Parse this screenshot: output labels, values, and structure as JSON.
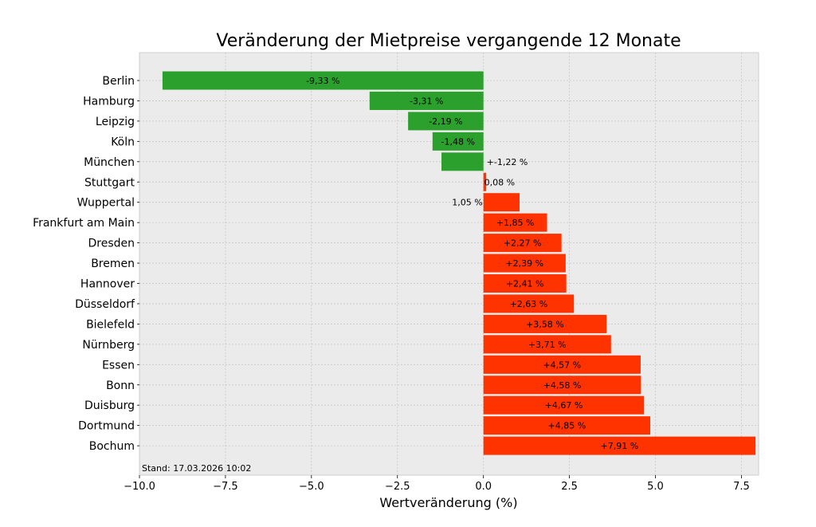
{
  "chart_data": {
    "type": "bar",
    "orientation": "horizontal",
    "title": "Veränderung der Mietpreise vergangende 12 Monate",
    "xlabel": "Wertveränderung (%)",
    "ylabel": "",
    "xlim": [
      -10.0,
      8.0
    ],
    "xticks": [
      -10.0,
      -7.5,
      -5.0,
      -2.5,
      0.0,
      2.5,
      5.0,
      7.5
    ],
    "xtick_labels": [
      "−10.0",
      "−7.5",
      "−5.0",
      "−2.5",
      "0.0",
      "2.5",
      "5.0",
      "7.5"
    ],
    "grid": true,
    "categories": [
      "Berlin",
      "Hamburg",
      "Leipzig",
      "Köln",
      "München",
      "Stuttgart",
      "Wuppertal",
      "Frankfurt am Main",
      "Dresden",
      "Bremen",
      "Hannover",
      "Düsseldorf",
      "Bielefeld",
      "Nürnberg",
      "Essen",
      "Bonn",
      "Duisburg",
      "Dortmund",
      "Bochum"
    ],
    "values": [
      -9.33,
      -3.31,
      -2.19,
      -1.48,
      -1.22,
      0.08,
      1.05,
      1.85,
      2.27,
      2.39,
      2.41,
      2.63,
      3.58,
      3.71,
      4.57,
      4.58,
      4.67,
      4.85,
      7.91
    ],
    "value_labels": [
      "-9,33 %",
      "-3,31 %",
      "-2,19 %",
      "-1,48 %",
      "+-1,22 %",
      "0,08 %",
      "1,05 %",
      "+1,85 %",
      "+2,27 %",
      "+2,39 %",
      "+2,41 %",
      "+2,63 %",
      "+3,58 %",
      "+3,71 %",
      "+4,57 %",
      "+4,58 %",
      "+4,67 %",
      "+4,85 %",
      "+7,91 %"
    ],
    "colors": {
      "negative": "#2ca02c",
      "positive": "#ff3300",
      "plot_bg": "#ebebeb",
      "grid": "#c8c8c8"
    },
    "annotation": "Stand: 17.03.2026 10:02"
  }
}
